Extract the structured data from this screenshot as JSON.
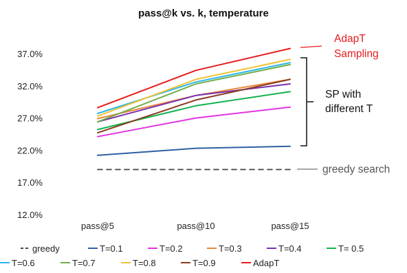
{
  "chart_data": {
    "type": "line",
    "title": "pass@k vs. k, temperature",
    "xlabel": "",
    "ylabel": "",
    "categories": [
      "pass@5",
      "pass@10",
      "pass@15"
    ],
    "ylim": [
      12.0,
      39.0
    ],
    "yticks": [
      "12.0%",
      "17.0%",
      "22.0%",
      "27.0%",
      "32.0%",
      "37.0%"
    ],
    "ytick_values": [
      12.0,
      17.0,
      22.0,
      27.0,
      32.0,
      37.0
    ],
    "grid": false,
    "legend_position": "bottom",
    "series": [
      {
        "name": "greedy",
        "color": "#444444",
        "dashed": true,
        "values": [
          19.0,
          19.0,
          19.0
        ]
      },
      {
        "name": "T=0.1",
        "color": "#2e5fa3",
        "values": [
          21.2,
          22.3,
          22.6
        ]
      },
      {
        "name": "T=0.2",
        "color": "#e233e2",
        "values": [
          24.1,
          27.0,
          28.7
        ]
      },
      {
        "name": "T=0.3",
        "color": "#e8883a",
        "values": [
          26.9,
          30.5,
          33.0
        ]
      },
      {
        "name": "T=0.4",
        "color": "#7a2fb0",
        "values": [
          26.4,
          30.5,
          32.3
        ]
      },
      {
        "name": "T= 0.5",
        "color": "#12b24e",
        "values": [
          25.2,
          28.9,
          31.1
        ]
      },
      {
        "name": "T=0.6",
        "color": "#28b6ea",
        "values": [
          27.7,
          32.6,
          35.6
        ]
      },
      {
        "name": "T=0.7",
        "color": "#6fae4a",
        "values": [
          26.4,
          32.3,
          35.3
        ]
      },
      {
        "name": "T=0.8",
        "color": "#f1c232",
        "values": [
          27.3,
          33.0,
          36.1
        ]
      },
      {
        "name": "T=0.9",
        "color": "#8b3a1f",
        "values": [
          24.7,
          29.8,
          33.0
        ]
      },
      {
        "name": "AdapT",
        "color": "#e51b1b",
        "values": [
          28.6,
          34.4,
          37.8
        ]
      }
    ],
    "annotations": {
      "adapt": "AdapT\nSampling",
      "sp": "SP with\ndifferent T",
      "greedy": "greedy search"
    }
  }
}
